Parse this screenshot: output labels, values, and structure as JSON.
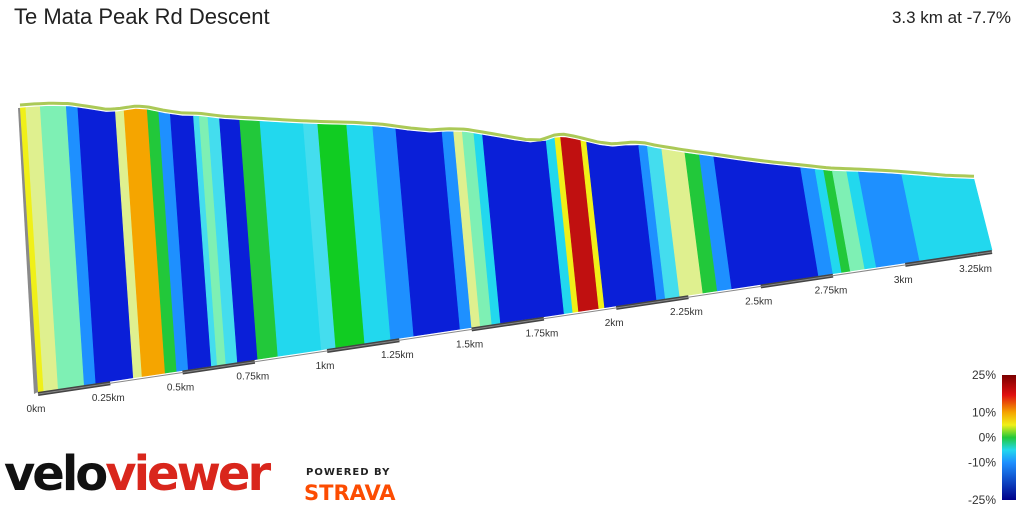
{
  "header": {
    "title": "Te Mata Peak Rd Descent",
    "summary": "3.3 km at -7.7%"
  },
  "branding": {
    "logo_part1": "velo",
    "logo_part2": "viewer",
    "powered_by": "POWERED BY",
    "partner": "STRAVA",
    "partner_color": "#fc4c02",
    "logo_accent_color": "#d9261c"
  },
  "chart_data": {
    "type": "area",
    "title": "Te Mata Peak Rd Descent",
    "subtitle": "3.3 km at -7.7%",
    "xunit": "km",
    "xlim": [
      0,
      3.3
    ],
    "x_ticks": [
      {
        "value": 0,
        "label": "0km"
      },
      {
        "value": 0.25,
        "label": "0.25km"
      },
      {
        "value": 0.5,
        "label": "0.5km"
      },
      {
        "value": 0.75,
        "label": "0.75km"
      },
      {
        "value": 1.0,
        "label": "1km"
      },
      {
        "value": 1.25,
        "label": "1.25km"
      },
      {
        "value": 1.5,
        "label": "1.5km"
      },
      {
        "value": 1.75,
        "label": "1.75km"
      },
      {
        "value": 2.0,
        "label": "2km"
      },
      {
        "value": 2.25,
        "label": "2.25km"
      },
      {
        "value": 2.5,
        "label": "2.5km"
      },
      {
        "value": 2.75,
        "label": "2.75km"
      },
      {
        "value": 3.0,
        "label": "3km"
      },
      {
        "value": 3.25,
        "label": "3.25km"
      }
    ],
    "profile": [
      {
        "x": 0.0,
        "elev": 1.0
      },
      {
        "x": 0.05,
        "elev": 1.03
      },
      {
        "x": 0.1,
        "elev": 1.05
      },
      {
        "x": 0.17,
        "elev": 1.04
      },
      {
        "x": 0.23,
        "elev": 0.97
      },
      {
        "x": 0.3,
        "elev": 0.88
      },
      {
        "x": 0.34,
        "elev": 0.9
      },
      {
        "x": 0.4,
        "elev": 0.97
      },
      {
        "x": 0.44,
        "elev": 0.95
      },
      {
        "x": 0.5,
        "elev": 0.85
      },
      {
        "x": 0.56,
        "elev": 0.78
      },
      {
        "x": 0.62,
        "elev": 0.77
      },
      {
        "x": 0.7,
        "elev": 0.69
      },
      {
        "x": 0.76,
        "elev": 0.66
      },
      {
        "x": 0.85,
        "elev": 0.62
      },
      {
        "x": 0.95,
        "elev": 0.57
      },
      {
        "x": 1.05,
        "elev": 0.54
      },
      {
        "x": 1.15,
        "elev": 0.52
      },
      {
        "x": 1.25,
        "elev": 0.47
      },
      {
        "x": 1.35,
        "elev": 0.36
      },
      {
        "x": 1.42,
        "elev": 0.31
      },
      {
        "x": 1.48,
        "elev": 0.34
      },
      {
        "x": 1.54,
        "elev": 0.33
      },
      {
        "x": 1.6,
        "elev": 0.25
      },
      {
        "x": 1.68,
        "elev": 0.14
      },
      {
        "x": 1.75,
        "elev": 0.04
      },
      {
        "x": 1.8,
        "elev": 0.03
      },
      {
        "x": 1.85,
        "elev": 0.17
      },
      {
        "x": 1.88,
        "elev": 0.19
      },
      {
        "x": 1.92,
        "elev": 0.13
      },
      {
        "x": 2.0,
        "elev": -0.03
      },
      {
        "x": 2.05,
        "elev": -0.08
      },
      {
        "x": 2.12,
        "elev": -0.03
      },
      {
        "x": 2.16,
        "elev": -0.05
      },
      {
        "x": 2.2,
        "elev": -0.12
      },
      {
        "x": 2.3,
        "elev": -0.25
      },
      {
        "x": 2.4,
        "elev": -0.36
      },
      {
        "x": 2.5,
        "elev": -0.48
      },
      {
        "x": 2.6,
        "elev": -0.58
      },
      {
        "x": 2.7,
        "elev": -0.66
      },
      {
        "x": 2.8,
        "elev": -0.75
      },
      {
        "x": 2.9,
        "elev": -0.78
      },
      {
        "x": 3.0,
        "elev": -0.82
      },
      {
        "x": 3.1,
        "elev": -0.88
      },
      {
        "x": 3.2,
        "elev": -0.95
      },
      {
        "x": 3.3,
        "elev": -0.98
      }
    ],
    "gradient_segments": [
      {
        "x0": 0.0,
        "x1": 0.02,
        "color": "#f0f018"
      },
      {
        "x0": 0.02,
        "x1": 0.07,
        "color": "#dff08f"
      },
      {
        "x0": 0.07,
        "x1": 0.16,
        "color": "#7ef0b4"
      },
      {
        "x0": 0.16,
        "x1": 0.2,
        "color": "#1e90ff"
      },
      {
        "x0": 0.2,
        "x1": 0.33,
        "color": "#0a1fd8"
      },
      {
        "x0": 0.33,
        "x1": 0.36,
        "color": "#dff08f"
      },
      {
        "x0": 0.36,
        "x1": 0.44,
        "color": "#f5a500"
      },
      {
        "x0": 0.44,
        "x1": 0.48,
        "color": "#22c83a"
      },
      {
        "x0": 0.48,
        "x1": 0.52,
        "color": "#1e90ff"
      },
      {
        "x0": 0.52,
        "x1": 0.6,
        "color": "#0a1fd8"
      },
      {
        "x0": 0.6,
        "x1": 0.62,
        "color": "#44ddee"
      },
      {
        "x0": 0.62,
        "x1": 0.65,
        "color": "#7ef0b4"
      },
      {
        "x0": 0.65,
        "x1": 0.69,
        "color": "#44ddee"
      },
      {
        "x0": 0.69,
        "x1": 0.76,
        "color": "#0a1fd8"
      },
      {
        "x0": 0.76,
        "x1": 0.83,
        "color": "#22c83a"
      },
      {
        "x0": 0.83,
        "x1": 0.98,
        "color": "#22d8ee"
      },
      {
        "x0": 0.98,
        "x1": 1.03,
        "color": "#44ddee"
      },
      {
        "x0": 1.03,
        "x1": 1.13,
        "color": "#11cc22"
      },
      {
        "x0": 1.13,
        "x1": 1.22,
        "color": "#22d8ee"
      },
      {
        "x0": 1.22,
        "x1": 1.3,
        "color": "#1e90ff"
      },
      {
        "x0": 1.3,
        "x1": 1.46,
        "color": "#0a1fd8"
      },
      {
        "x0": 1.46,
        "x1": 1.5,
        "color": "#1e90ff"
      },
      {
        "x0": 1.5,
        "x1": 1.53,
        "color": "#dff08f"
      },
      {
        "x0": 1.53,
        "x1": 1.57,
        "color": "#7ef0b4"
      },
      {
        "x0": 1.57,
        "x1": 1.6,
        "color": "#22d8ee"
      },
      {
        "x0": 1.6,
        "x1": 1.82,
        "color": "#0a1fd8"
      },
      {
        "x0": 1.82,
        "x1": 1.85,
        "color": "#22d8ee"
      },
      {
        "x0": 1.85,
        "x1": 1.87,
        "color": "#f0f018"
      },
      {
        "x0": 1.87,
        "x1": 1.94,
        "color": "#c01010"
      },
      {
        "x0": 1.94,
        "x1": 1.96,
        "color": "#f0f018"
      },
      {
        "x0": 1.96,
        "x1": 2.14,
        "color": "#0a1fd8"
      },
      {
        "x0": 2.14,
        "x1": 2.17,
        "color": "#1e90ff"
      },
      {
        "x0": 2.17,
        "x1": 2.22,
        "color": "#44ddee"
      },
      {
        "x0": 2.22,
        "x1": 2.3,
        "color": "#dff08f"
      },
      {
        "x0": 2.3,
        "x1": 2.35,
        "color": "#22c83a"
      },
      {
        "x0": 2.35,
        "x1": 2.4,
        "color": "#1e90ff"
      },
      {
        "x0": 2.4,
        "x1": 2.7,
        "color": "#0a1fd8"
      },
      {
        "x0": 2.7,
        "x1": 2.75,
        "color": "#1e90ff"
      },
      {
        "x0": 2.75,
        "x1": 2.78,
        "color": "#22d8ee"
      },
      {
        "x0": 2.78,
        "x1": 2.81,
        "color": "#22c83a"
      },
      {
        "x0": 2.81,
        "x1": 2.86,
        "color": "#7ef0b4"
      },
      {
        "x0": 2.86,
        "x1": 2.9,
        "color": "#22d8ee"
      },
      {
        "x0": 2.9,
        "x1": 3.05,
        "color": "#1e90ff"
      },
      {
        "x0": 3.05,
        "x1": 3.3,
        "color": "#22d8ee"
      }
    ],
    "legend": {
      "title": "",
      "placement": "right-bottom",
      "ticks": [
        {
          "value": 25,
          "label": "25%"
        },
        {
          "value": 10,
          "label": "10%"
        },
        {
          "value": 0,
          "label": "0%"
        },
        {
          "value": -10,
          "label": "-10%"
        },
        {
          "value": -25,
          "label": "-25%"
        }
      ],
      "stops": [
        {
          "value": 25,
          "color": "#7a0000"
        },
        {
          "value": 17,
          "color": "#e01010"
        },
        {
          "value": 10,
          "color": "#f5a500"
        },
        {
          "value": 5,
          "color": "#f0f018"
        },
        {
          "value": 0,
          "color": "#22c83a"
        },
        {
          "value": -5,
          "color": "#22d8ee"
        },
        {
          "value": -10,
          "color": "#1e90ff"
        },
        {
          "value": -25,
          "color": "#00008a"
        }
      ]
    }
  }
}
